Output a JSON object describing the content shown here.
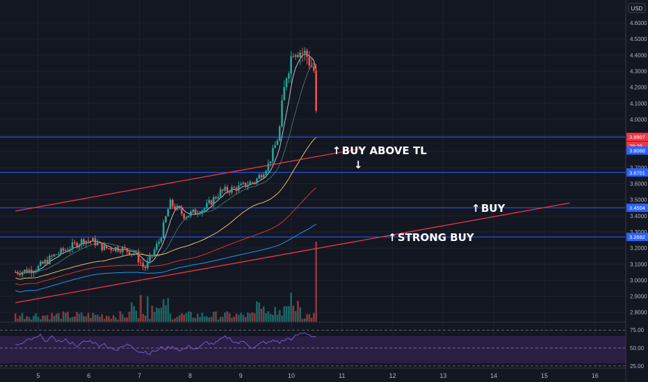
{
  "currency_label": "USD",
  "chart_data": {
    "type": "candlestick",
    "x_ticks": [
      "5",
      "6",
      "7",
      "8",
      "9",
      "10",
      "11",
      "12",
      "13",
      "14",
      "15",
      "16"
    ],
    "y_ticks": [
      "4.6000",
      "4.5000",
      "4.4000",
      "4.3000",
      "4.2000",
      "4.1000",
      "4.0000",
      "3.9000",
      "3.8000",
      "3.7000",
      "3.6000",
      "3.5000",
      "3.4000",
      "3.3000",
      "3.2000",
      "3.1000",
      "3.0000",
      "2.9000",
      "2.8000"
    ],
    "ylim": [
      2.74,
      4.64
    ],
    "price_tags": [
      {
        "label": "3.8907",
        "value": 3.8907,
        "color": "#f23645"
      },
      {
        "label": "28:29",
        "value": 3.836,
        "color": "#f23645"
      },
      {
        "label": "3.8068",
        "value": 3.8068,
        "color": "#2962ff"
      },
      {
        "label": "3.6701",
        "value": 3.6701,
        "color": "#2962ff"
      },
      {
        "label": "3.4504",
        "value": 3.4504,
        "color": "#2962ff"
      },
      {
        "label": "3.2692",
        "value": 3.2692,
        "color": "#2962ff"
      }
    ],
    "horizontal_levels": [
      3.8907,
      3.6701,
      3.4504,
      3.2692
    ],
    "trendlines": [
      {
        "from": [
          4.55,
          3.43
        ],
        "to": [
          11.4,
          3.82
        ],
        "color": "#f23645"
      },
      {
        "from": [
          4.55,
          2.86
        ],
        "to": [
          15.5,
          3.48
        ],
        "color": "#f23645"
      }
    ],
    "annotations": [
      {
        "text": "BUY ABOVE TL",
        "x": 11.0,
        "y": 3.81,
        "arrow": "up"
      },
      {
        "text": "",
        "x": 11.29,
        "y": 3.72,
        "arrow": "down"
      },
      {
        "text": "BUY",
        "x": 13.75,
        "y": 3.45,
        "arrow": "up"
      },
      {
        "text": "STRONG BUY",
        "x": 12.1,
        "y": 3.27,
        "arrow": "up"
      }
    ],
    "rsi": {
      "ticks": [
        "75.00",
        "50.00",
        "25.00"
      ],
      "range": [
        22,
        82
      ]
    }
  }
}
